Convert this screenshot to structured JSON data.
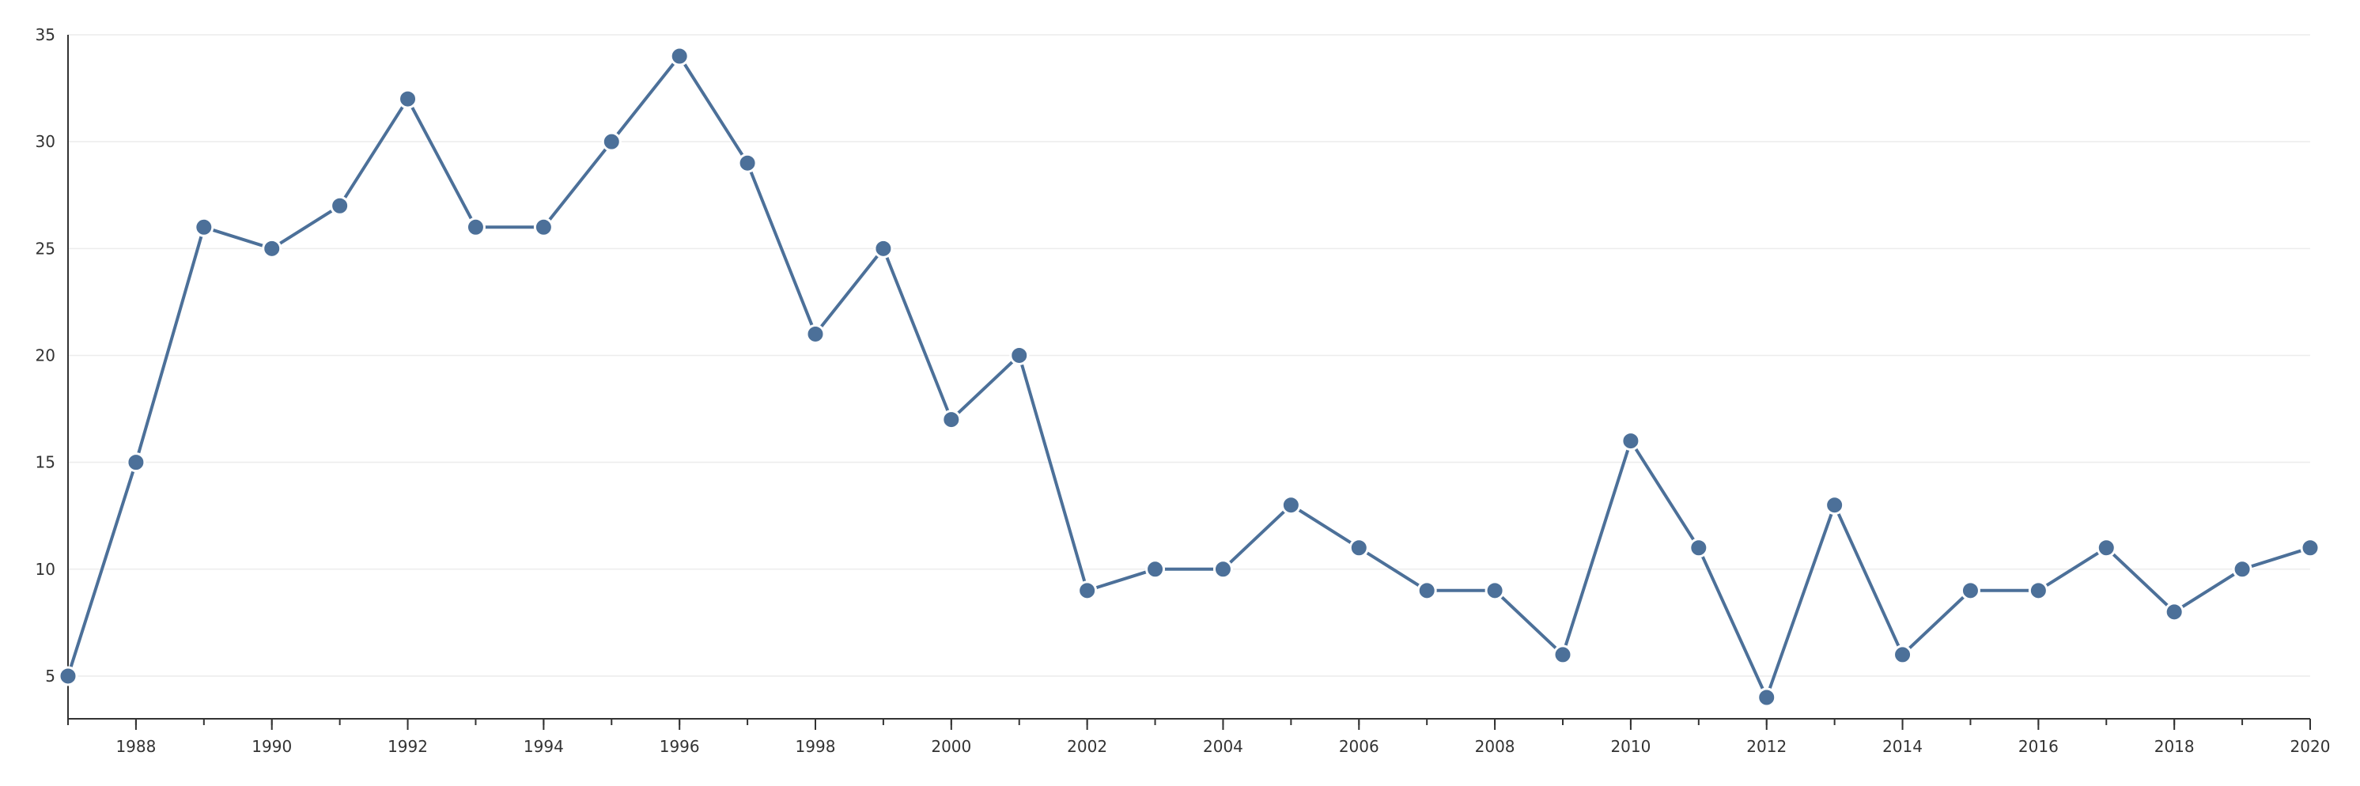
{
  "chart_data": {
    "type": "line",
    "title": "",
    "xlabel": "",
    "ylabel": "",
    "x": [
      1987,
      1988,
      1989,
      1990,
      1991,
      1992,
      1993,
      1994,
      1995,
      1996,
      1997,
      1998,
      1999,
      2000,
      2001,
      2002,
      2003,
      2004,
      2005,
      2006,
      2007,
      2008,
      2009,
      2010,
      2011,
      2012,
      2013,
      2014,
      2015,
      2016,
      2017,
      2018,
      2019,
      2020
    ],
    "series": [
      {
        "values": [
          5,
          15,
          26,
          25,
          27,
          32,
          26,
          26,
          30,
          34,
          29,
          21,
          25,
          17,
          20,
          9,
          10,
          10,
          13,
          11,
          9,
          9,
          6,
          16,
          11,
          4,
          13,
          6,
          9,
          9,
          11,
          8,
          10,
          11
        ],
        "color": "#4c7099"
      }
    ],
    "xlim": [
      1987,
      2020
    ],
    "ylim": [
      3,
      35
    ],
    "x_ticks": [
      "1988",
      "1990",
      "1992",
      "1994",
      "1996",
      "1998",
      "2000",
      "2002",
      "2004",
      "2006",
      "2008",
      "2010",
      "2012",
      "2014",
      "2016",
      "2018",
      "2020"
    ],
    "y_ticks": [
      "5",
      "10",
      "15",
      "20",
      "25",
      "30",
      "35"
    ],
    "grid": "horizontal",
    "legend": "none"
  }
}
